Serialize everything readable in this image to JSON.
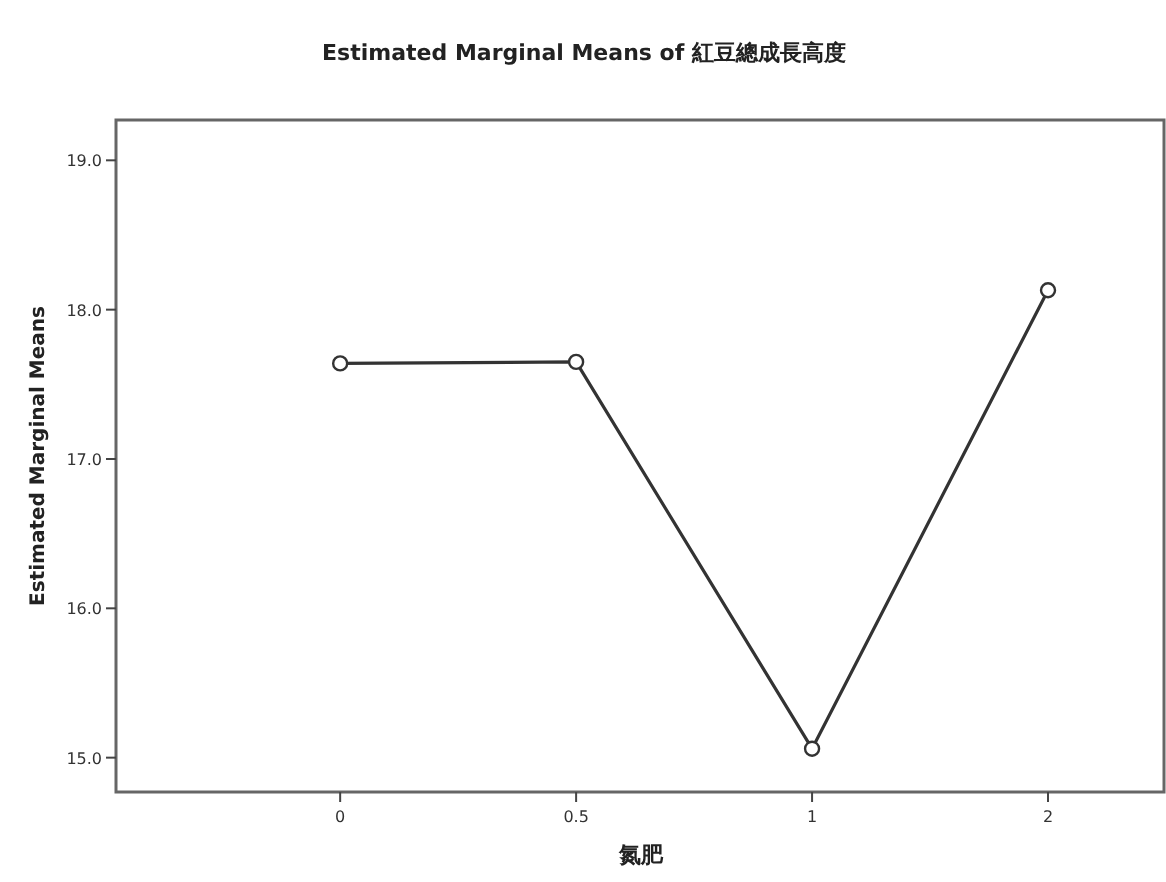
{
  "chart_data": {
    "type": "line",
    "title": "Estimated Marginal Means of 紅豆總成長高度",
    "xlabel": "氮肥",
    "ylabel": "Estimated Marginal Means",
    "categories": [
      "0",
      "0.5",
      "1",
      "2"
    ],
    "series": [
      {
        "color": "#333333",
        "values": [
          17.64,
          17.65,
          15.06,
          18.13
        ]
      }
    ],
    "ylim": [
      14.77,
      19.27
    ],
    "yticks": [
      {
        "value": 15,
        "label": "15.0"
      },
      {
        "value": 16,
        "label": "16.0"
      },
      {
        "value": 17,
        "label": "17.0"
      },
      {
        "value": 18,
        "label": "18.0"
      },
      {
        "value": 19,
        "label": "19.0"
      }
    ],
    "marker": "circle",
    "grid": false
  }
}
